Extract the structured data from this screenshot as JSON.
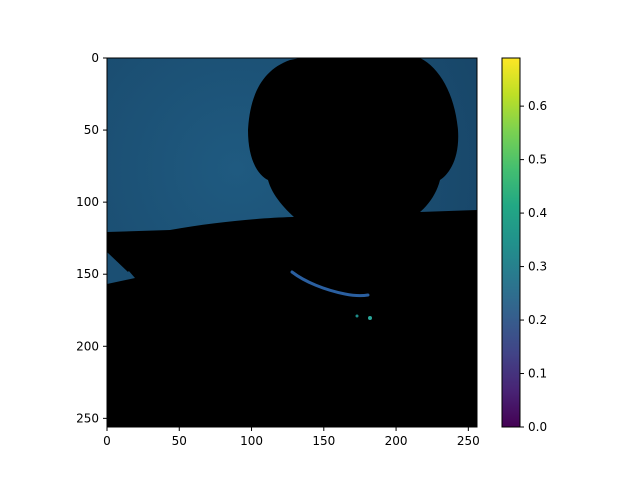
{
  "chart_data": {
    "type": "heatmap",
    "title": "",
    "xlabel": "",
    "ylabel": "",
    "image_size": [
      256,
      256
    ],
    "xlim": [
      0,
      256
    ],
    "ylim": [
      256,
      0
    ],
    "x_ticks": [
      {
        "value": 0,
        "label": "0"
      },
      {
        "value": 50,
        "label": "50"
      },
      {
        "value": 100,
        "label": "100"
      },
      {
        "value": 150,
        "label": "150"
      },
      {
        "value": 200,
        "label": "200"
      },
      {
        "value": 250,
        "label": "250"
      }
    ],
    "y_ticks": [
      {
        "value": 0,
        "label": "0"
      },
      {
        "value": 50,
        "label": "50"
      },
      {
        "value": 100,
        "label": "100"
      },
      {
        "value": 150,
        "label": "150"
      },
      {
        "value": 200,
        "label": "200"
      },
      {
        "value": 250,
        "label": "250"
      }
    ],
    "colorbar": {
      "colormap": "viridis",
      "range": [
        0.0,
        0.69
      ],
      "ticks": [
        {
          "value": 0.0,
          "label": "0.0"
        },
        {
          "value": 0.1,
          "label": "0.1"
        },
        {
          "value": 0.2,
          "label": "0.2"
        },
        {
          "value": 0.3,
          "label": "0.3"
        },
        {
          "value": 0.4,
          "label": "0.4"
        },
        {
          "value": 0.5,
          "label": "0.5"
        },
        {
          "value": 0.6,
          "label": "0.6"
        }
      ]
    },
    "image_colors": {
      "background_wall": "#1b4f73",
      "subject_silhouette": "#000000",
      "collar_highlight": "#2a5fa0"
    }
  }
}
